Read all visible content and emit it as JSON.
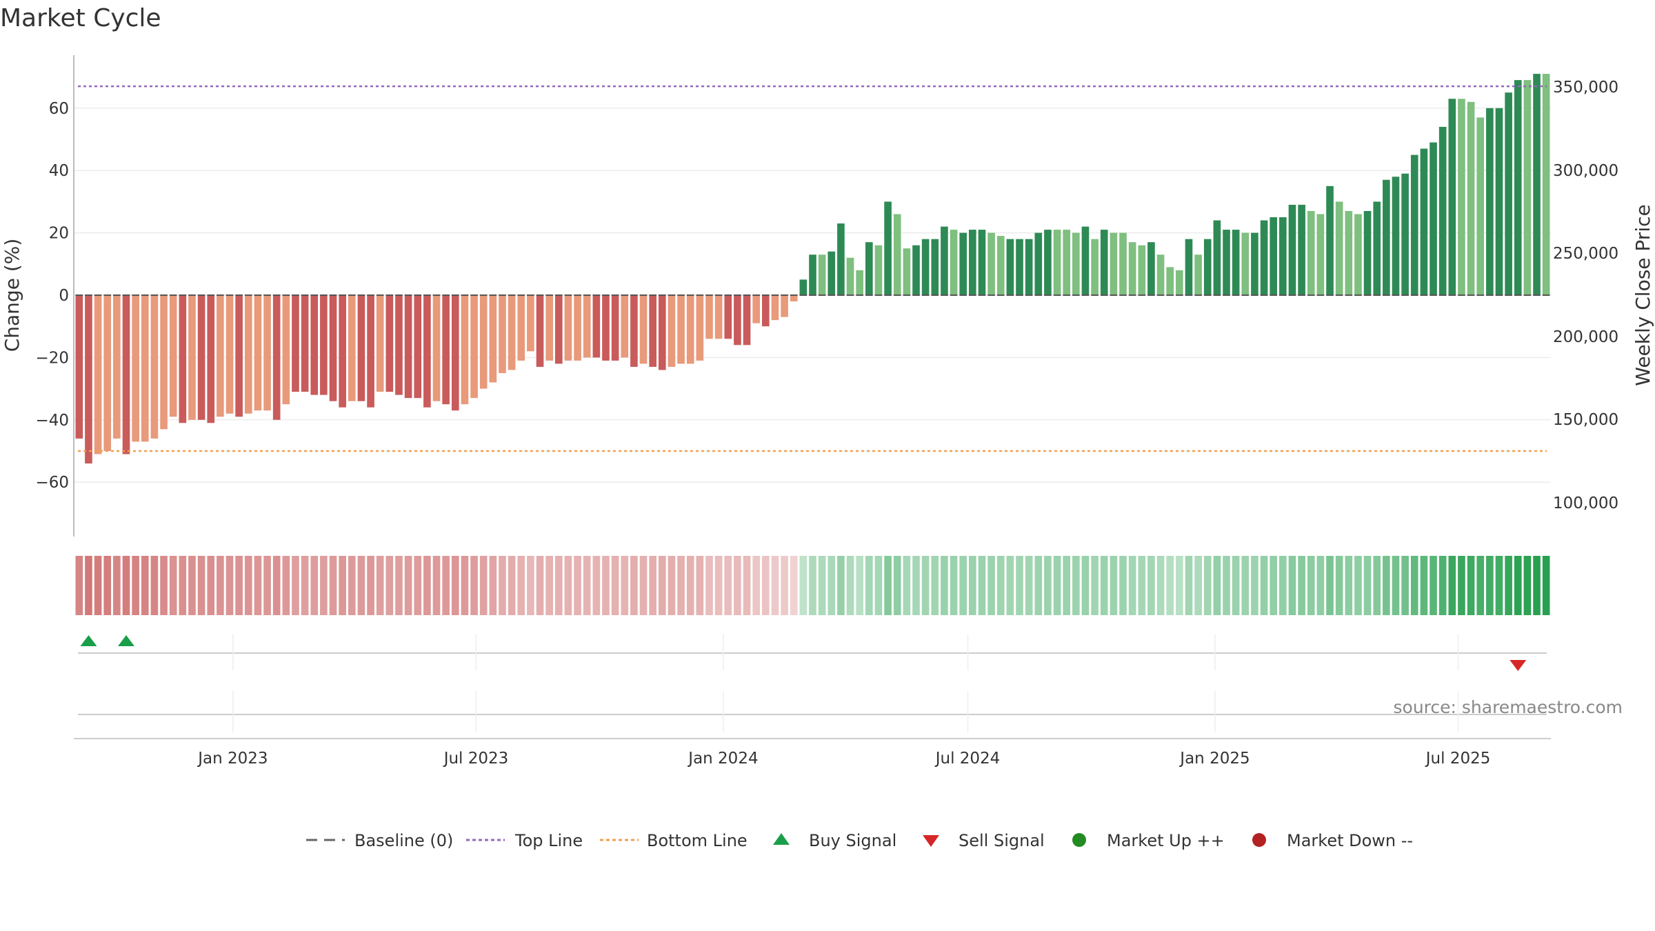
{
  "title": "Market Cycle",
  "source": "source: sharemaestro.com",
  "colors": {
    "neg_dark": "#c95b5b",
    "neg_light": "#e89a7b",
    "pos_dark": "#2e8a55",
    "pos_light": "#7fbf7f",
    "top_line": "#9467bd",
    "bottom_line": "#f0a050",
    "buy": "#1a9e4a",
    "sell": "#d62728",
    "market_up": "#228b22",
    "market_down": "#b22222"
  },
  "chart_data": {
    "type": "bar",
    "left_axis": {
      "label": "Change (%)",
      "ticks": [
        60,
        40,
        20,
        0,
        -20,
        -40,
        -60
      ],
      "range": [
        -77,
        77
      ]
    },
    "right_axis": {
      "label": "Weekly Close Price",
      "ticks": [
        "350,000",
        "300,000",
        "250,000",
        "200,000",
        "150,000",
        "100,000"
      ]
    },
    "x_ticks": [
      "Jan 2023",
      "Jul 2023",
      "Jan 2024",
      "Jul 2024",
      "Jan 2025",
      "Jul 2025"
    ],
    "start_date": "2022-09-05",
    "x_tick_dates": [
      "2023-01-01",
      "2023-07-01",
      "2024-01-01",
      "2024-07-01",
      "2025-01-01",
      "2025-07-01"
    ],
    "top_line": 67,
    "bottom_line": -50,
    "values": [
      -46,
      -54,
      -51,
      -50,
      -46,
      -51,
      -47,
      -47,
      -46,
      -43,
      -39,
      -41,
      -40,
      -40,
      -41,
      -39,
      -38,
      -39,
      -38,
      -37,
      -37,
      -40,
      -35,
      -31,
      -31,
      -32,
      -32,
      -34,
      -36,
      -34,
      -34,
      -36,
      -31,
      -31,
      -32,
      -33,
      -33,
      -36,
      -34,
      -35,
      -37,
      -35,
      -33,
      -30,
      -28,
      -25,
      -24,
      -21,
      -18,
      -23,
      -21,
      -22,
      -21,
      -21,
      -20,
      -20,
      -21,
      -21,
      -20,
      -23,
      -22,
      -23,
      -24,
      -23,
      -22,
      -22,
      -21,
      -14,
      -14,
      -14,
      -16,
      -16,
      -9,
      -10,
      -8,
      -7,
      -2,
      5,
      13,
      13,
      14,
      23,
      12,
      8,
      17,
      16,
      30,
      26,
      15,
      16,
      18,
      18,
      22,
      21,
      20,
      21,
      21,
      20,
      19,
      18,
      18,
      18,
      20,
      21,
      21,
      21,
      20,
      22,
      18,
      21,
      20,
      20,
      17,
      16,
      17,
      13,
      9,
      8,
      18,
      13,
      18,
      24,
      21,
      21,
      20,
      20,
      24,
      25,
      25,
      29,
      29,
      27,
      26,
      35,
      30,
      27,
      26,
      27,
      30,
      37,
      38,
      39,
      45,
      47,
      49,
      54,
      63,
      63,
      62,
      57,
      60,
      60,
      65,
      69,
      69,
      71,
      71
    ],
    "shade": [
      1,
      1,
      0,
      0,
      0,
      1,
      0,
      0,
      0,
      0,
      0,
      1,
      0,
      1,
      1,
      0,
      0,
      1,
      0,
      0,
      0,
      1,
      0,
      1,
      1,
      1,
      1,
      1,
      1,
      0,
      1,
      1,
      0,
      1,
      1,
      1,
      1,
      1,
      0,
      1,
      1,
      0,
      0,
      0,
      0,
      0,
      0,
      0,
      0,
      1,
      0,
      1,
      0,
      0,
      0,
      1,
      1,
      1,
      0,
      1,
      0,
      1,
      1,
      0,
      0,
      0,
      0,
      0,
      0,
      1,
      1,
      1,
      0,
      1,
      0,
      0,
      0,
      1,
      1,
      0,
      1,
      1,
      0,
      0,
      1,
      0,
      1,
      0,
      0,
      1,
      1,
      1,
      1,
      0,
      1,
      1,
      1,
      0,
      0,
      1,
      1,
      1,
      1,
      1,
      0,
      0,
      0,
      1,
      0,
      1,
      0,
      0,
      0,
      0,
      1,
      0,
      0,
      0,
      1,
      0,
      1,
      1,
      1,
      1,
      0,
      1,
      1,
      1,
      1,
      1,
      1,
      0,
      0,
      1,
      0,
      0,
      0,
      1,
      1,
      1,
      1,
      1,
      1,
      1,
      1,
      1,
      1,
      0,
      0,
      0,
      1,
      1,
      1,
      1,
      0,
      1,
      0
    ],
    "buy_signals": [
      1,
      5
    ],
    "sell_signals": [
      153
    ],
    "legend": [
      {
        "label": "Baseline (0)",
        "marker": "dashed-gray"
      },
      {
        "label": "Top Line",
        "marker": "dotted-purple"
      },
      {
        "label": "Bottom Line",
        "marker": "dotted-orange"
      },
      {
        "label": "Buy Signal",
        "marker": "triangle-up-green"
      },
      {
        "label": "Sell Signal",
        "marker": "triangle-down-red"
      },
      {
        "label": "Market Up ++",
        "marker": "circle-green"
      },
      {
        "label": "Market Down --",
        "marker": "circle-red"
      }
    ]
  }
}
